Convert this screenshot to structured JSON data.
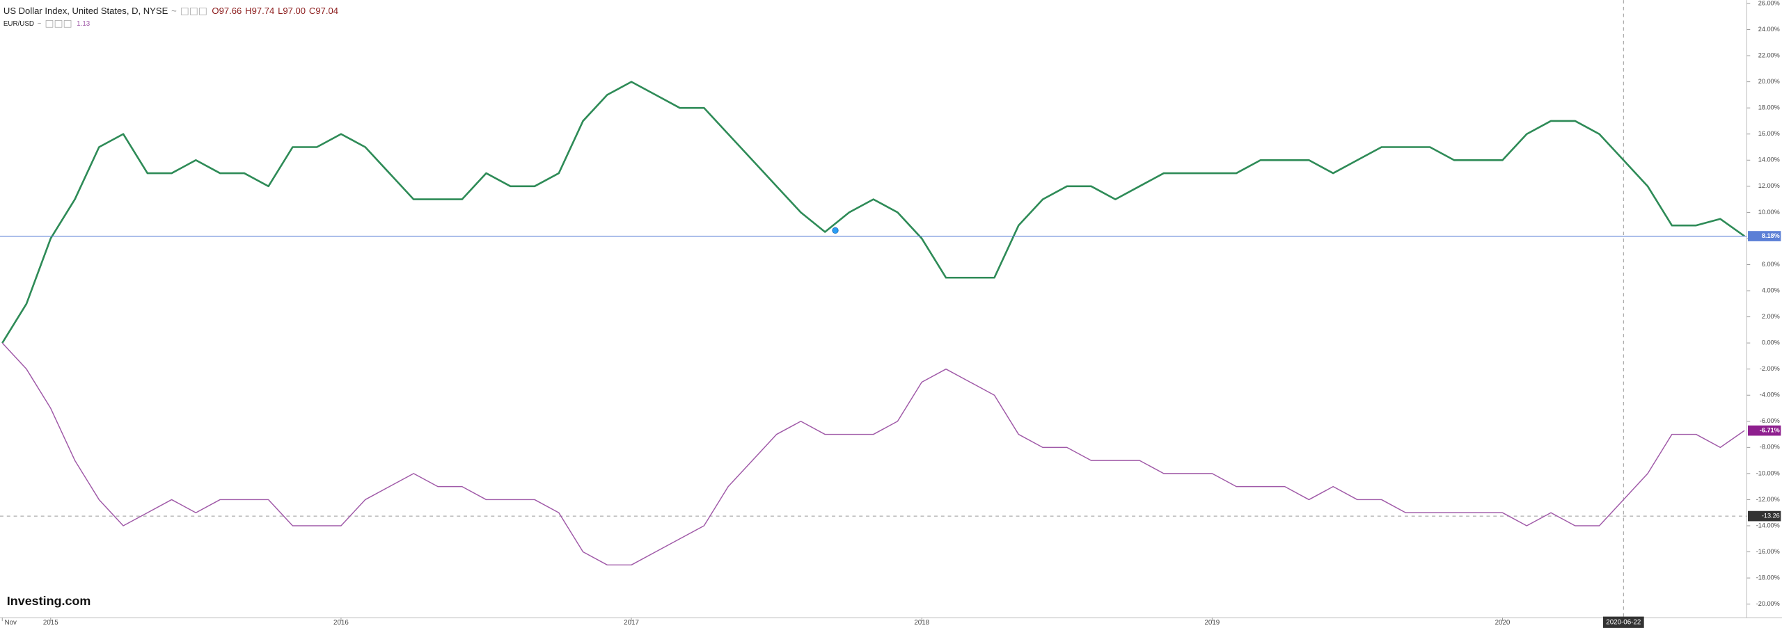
{
  "chart_data": {
    "type": "line",
    "brand": "Investing.com",
    "categories": [
      "Nov",
      null,
      "2015",
      null,
      null,
      null,
      null,
      null,
      null,
      null,
      null,
      null,
      null,
      null,
      "2016",
      null,
      null,
      null,
      null,
      null,
      null,
      null,
      null,
      null,
      null,
      null,
      "2017",
      null,
      null,
      null,
      null,
      null,
      null,
      null,
      null,
      null,
      null,
      null,
      "2018",
      null,
      null,
      null,
      null,
      null,
      null,
      null,
      null,
      null,
      null,
      null,
      "2019",
      null,
      null,
      null,
      null,
      null,
      null,
      null,
      null,
      null,
      null,
      null,
      "2020",
      null,
      null,
      null,
      null,
      "2020-06-22",
      null,
      null,
      null,
      null,
      null
    ],
    "series": [
      {
        "name": "US Dollar Index, United States, D, NYSE",
        "separator": "~",
        "quote": [
          "O97.66",
          "H97.74",
          "L97.00",
          "C97.04"
        ],
        "quote_color": "#8b1a1a",
        "color": "#2e8b57",
        "last_label": "8.18%",
        "last_color": "#5b7fd6",
        "last_line": "solid",
        "values": [
          0,
          3,
          8,
          11,
          15,
          16,
          13,
          13,
          14,
          13,
          13,
          12,
          15,
          15,
          16,
          15,
          13,
          11,
          11,
          11,
          13,
          12,
          12,
          13,
          17,
          19,
          20,
          19,
          18,
          18,
          16,
          14,
          12,
          10,
          8.5,
          10,
          11,
          10,
          8,
          5,
          5,
          5,
          9,
          11,
          12,
          12,
          11,
          12,
          13,
          13,
          13,
          13,
          14,
          14,
          14,
          13,
          14,
          15,
          15,
          15,
          14,
          14,
          14,
          16,
          17,
          17,
          16,
          14,
          12,
          9,
          9,
          9.5,
          8.18
        ]
      },
      {
        "name": "EUR/USD",
        "separator": "~",
        "quote": [
          "1.13"
        ],
        "quote_color": "#a05aa8",
        "color": "#a05aa8",
        "last_label": "-6.71%",
        "last_color": "#8e1f8e",
        "values": [
          0,
          -2,
          -5,
          -9,
          -12,
          -14,
          -13,
          -12,
          -13,
          -12,
          -12,
          -12,
          -14,
          -14,
          -14,
          -12,
          -11,
          -10,
          -11,
          -11,
          -12,
          -12,
          -12,
          -13,
          -16,
          -17,
          -17,
          -16,
          -15,
          -14,
          -11,
          -9,
          -7,
          -6,
          -7,
          -7,
          -7,
          -6,
          -3,
          -2,
          -3,
          -4,
          -7,
          -8,
          -8,
          -9,
          -9,
          -9,
          -10,
          -10,
          -10,
          -11,
          -11,
          -11,
          -12,
          -11,
          -12,
          -12,
          -13,
          -13,
          -13,
          -13,
          -13,
          -14,
          -13,
          -14,
          -14,
          -12,
          -10,
          -7,
          -7,
          -8,
          -6.71
        ]
      }
    ],
    "crosshair": {
      "x": "2020-06-22",
      "y": -13.26
    },
    "ylim": [
      -20,
      26
    ],
    "yticks": [
      {
        "value": 26,
        "label": "26.00%"
      },
      {
        "value": 24,
        "label": "24.00%"
      },
      {
        "value": 22,
        "label": "22.00%"
      },
      {
        "value": 20,
        "label": "20.00%"
      },
      {
        "value": 18,
        "label": "18.00%"
      },
      {
        "value": 16,
        "label": "16.00%"
      },
      {
        "value": 14,
        "label": "14.00%"
      },
      {
        "value": 12,
        "label": "12.00%"
      },
      {
        "value": 10,
        "label": "10.00%"
      },
      {
        "value": 8,
        "label": "8.00%"
      },
      {
        "value": 6,
        "label": "6.00%"
      },
      {
        "value": 4,
        "label": "4.00%"
      },
      {
        "value": 2,
        "label": "2.00%"
      },
      {
        "value": 0,
        "label": "0.00%"
      },
      {
        "value": -2,
        "label": "-2.00%"
      },
      {
        "value": -4,
        "label": "-4.00%"
      },
      {
        "value": -6,
        "label": "-6.00%"
      },
      {
        "value": -8,
        "label": "-8.00%"
      },
      {
        "value": -10,
        "label": "-10.00%"
      },
      {
        "value": -12,
        "label": "-12.00%"
      },
      {
        "value": -14,
        "label": "-14.00%"
      },
      {
        "value": -16,
        "label": "-16.00%"
      },
      {
        "value": -18,
        "label": "-18.00%"
      },
      {
        "value": -20,
        "label": "-20.00%"
      }
    ],
    "grid": false
  }
}
